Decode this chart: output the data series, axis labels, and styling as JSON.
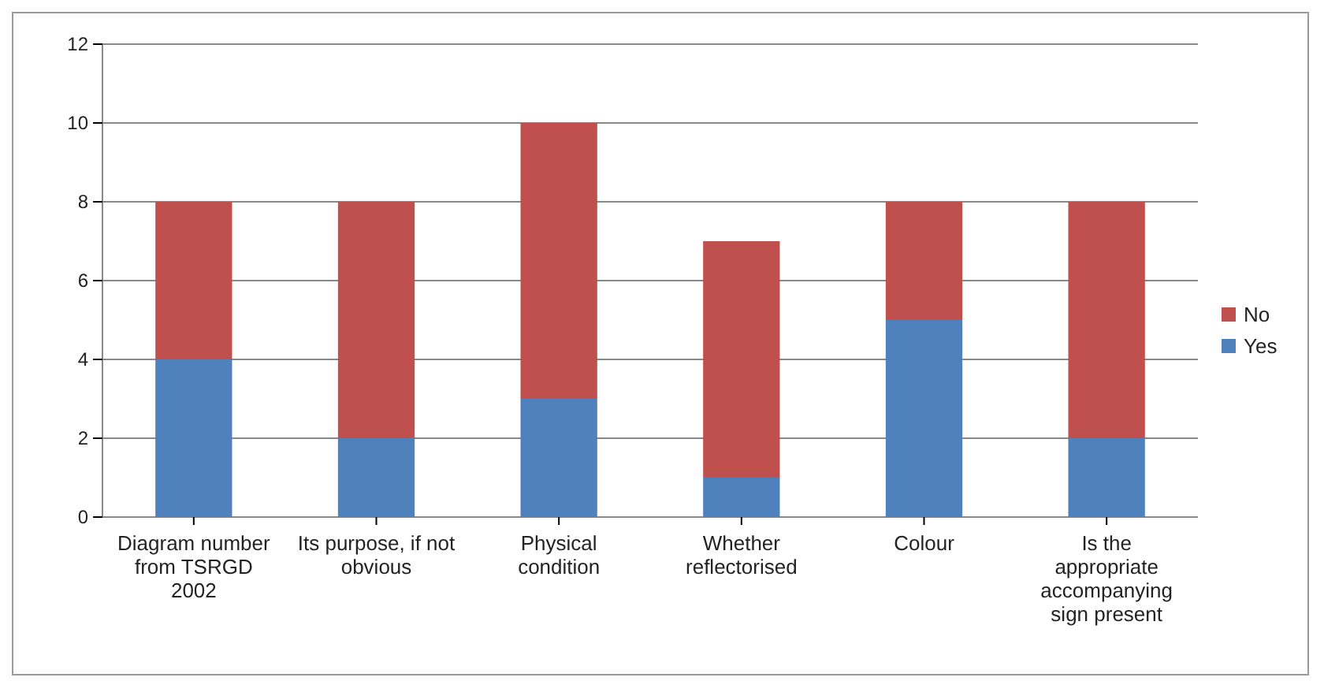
{
  "chart_data": {
    "type": "bar",
    "stacked": true,
    "categories": [
      "Diagram number from TSRGD 2002",
      "Its purpose, if not obvious",
      "Physical condition",
      "Whether reflectorised",
      "Colour",
      "Is the appropriate accompanying sign present"
    ],
    "series": [
      {
        "name": "Yes",
        "color": "#4f81bd",
        "values": [
          4,
          2,
          3,
          1,
          5,
          2
        ]
      },
      {
        "name": "No",
        "color": "#c0504d",
        "values": [
          4,
          6,
          7,
          6,
          3,
          6
        ]
      }
    ],
    "ylim": [
      0,
      12
    ],
    "yticks": [
      0,
      2,
      4,
      6,
      8,
      10,
      12
    ],
    "grid": "y",
    "legend": "right"
  }
}
